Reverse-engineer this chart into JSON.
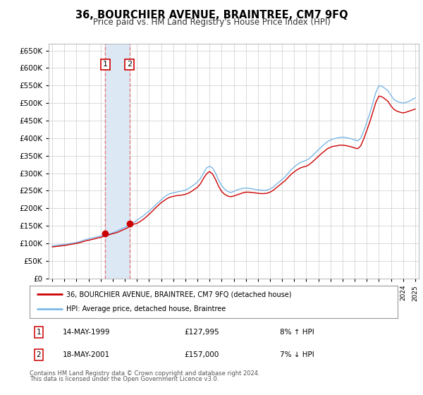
{
  "title": "36, BOURCHIER AVENUE, BRAINTREE, CM7 9FQ",
  "subtitle": "Price paid vs. HM Land Registry's House Price Index (HPI)",
  "legend_line1": "36, BOURCHIER AVENUE, BRAINTREE, CM7 9FQ (detached house)",
  "legend_line2": "HPI: Average price, detached house, Braintree",
  "transaction1_date": "14-MAY-1999",
  "transaction1_price": 127995,
  "transaction1_hpi": "8% ↑ HPI",
  "transaction2_date": "18-MAY-2001",
  "transaction2_price": 157000,
  "transaction2_hpi": "7% ↓ HPI",
  "footnote1": "Contains HM Land Registry data © Crown copyright and database right 2024.",
  "footnote2": "This data is licensed under the Open Government Licence v3.0.",
  "hpi_color": "#7ab8e8",
  "price_color": "#cc0000",
  "marker_color": "#cc0000",
  "background_color": "#ffffff",
  "grid_color": "#cccccc",
  "vspan_color": "#dde8f5",
  "vline_color": "#e08080",
  "ylim": [
    0,
    670000
  ],
  "yticks": [
    0,
    50000,
    100000,
    150000,
    200000,
    250000,
    300000,
    350000,
    400000,
    450000,
    500000,
    550000,
    600000,
    650000
  ],
  "years": [
    1995.0,
    1995.25,
    1995.5,
    1995.75,
    1996.0,
    1996.25,
    1996.5,
    1996.75,
    1997.0,
    1997.25,
    1997.5,
    1997.75,
    1998.0,
    1998.25,
    1998.5,
    1998.75,
    1999.0,
    1999.25,
    1999.5,
    1999.75,
    2000.0,
    2000.25,
    2000.5,
    2000.75,
    2001.0,
    2001.25,
    2001.5,
    2001.75,
    2002.0,
    2002.25,
    2002.5,
    2002.75,
    2003.0,
    2003.25,
    2003.5,
    2003.75,
    2004.0,
    2004.25,
    2004.5,
    2004.75,
    2005.0,
    2005.25,
    2005.5,
    2005.75,
    2006.0,
    2006.25,
    2006.5,
    2006.75,
    2007.0,
    2007.25,
    2007.5,
    2007.75,
    2008.0,
    2008.25,
    2008.5,
    2008.75,
    2009.0,
    2009.25,
    2009.5,
    2009.75,
    2010.0,
    2010.25,
    2010.5,
    2010.75,
    2011.0,
    2011.25,
    2011.5,
    2011.75,
    2012.0,
    2012.25,
    2012.5,
    2012.75,
    2013.0,
    2013.25,
    2013.5,
    2013.75,
    2014.0,
    2014.25,
    2014.5,
    2014.75,
    2015.0,
    2015.25,
    2015.5,
    2015.75,
    2016.0,
    2016.25,
    2016.5,
    2016.75,
    2017.0,
    2017.25,
    2017.5,
    2017.75,
    2018.0,
    2018.25,
    2018.5,
    2018.75,
    2019.0,
    2019.25,
    2019.5,
    2019.75,
    2020.0,
    2020.25,
    2020.5,
    2020.75,
    2021.0,
    2021.25,
    2021.5,
    2021.75,
    2022.0,
    2022.25,
    2022.5,
    2022.75,
    2023.0,
    2023.25,
    2023.5,
    2023.75,
    2024.0,
    2024.25,
    2024.5,
    2024.75,
    2025.0
  ],
  "hpi_values": [
    93000,
    94000,
    95000,
    96000,
    97000,
    98500,
    100000,
    101000,
    103000,
    105000,
    108000,
    111000,
    113000,
    115000,
    117000,
    119000,
    121000,
    123000,
    125000,
    127000,
    130000,
    134000,
    138000,
    142000,
    146000,
    150000,
    155000,
    160000,
    166000,
    172000,
    178000,
    185000,
    192000,
    200000,
    208000,
    216000,
    224000,
    232000,
    238000,
    242000,
    244000,
    246000,
    248000,
    250000,
    252000,
    256000,
    262000,
    268000,
    275000,
    285000,
    300000,
    315000,
    320000,
    315000,
    300000,
    280000,
    265000,
    255000,
    248000,
    245000,
    248000,
    252000,
    255000,
    257000,
    258000,
    257000,
    256000,
    254000,
    253000,
    252000,
    251000,
    252000,
    255000,
    260000,
    268000,
    275000,
    282000,
    290000,
    300000,
    310000,
    318000,
    325000,
    330000,
    334000,
    337000,
    342000,
    350000,
    358000,
    367000,
    375000,
    383000,
    390000,
    395000,
    398000,
    400000,
    402000,
    403000,
    402000,
    400000,
    398000,
    395000,
    392000,
    400000,
    420000,
    445000,
    470000,
    500000,
    530000,
    550000,
    548000,
    542000,
    535000,
    522000,
    510000,
    505000,
    502000,
    500000,
    502000,
    505000,
    510000,
    515000
  ],
  "red_values": [
    90000,
    91000,
    92000,
    93000,
    94000,
    95500,
    97000,
    98500,
    100000,
    102000,
    104500,
    107000,
    109000,
    111000,
    113000,
    115500,
    117000,
    120000,
    122500,
    125000,
    127995,
    130000,
    133000,
    137000,
    141000,
    145000,
    150000,
    155000,
    157000,
    162000,
    168000,
    175000,
    183000,
    191000,
    200000,
    208000,
    216000,
    222000,
    228000,
    232000,
    234000,
    236000,
    237000,
    238000,
    240000,
    243000,
    248000,
    254000,
    260000,
    270000,
    285000,
    298000,
    305000,
    298000,
    282000,
    263000,
    248000,
    240000,
    235000,
    233000,
    235000,
    238000,
    241000,
    244000,
    246000,
    246000,
    245000,
    244000,
    243000,
    242000,
    242000,
    243000,
    246000,
    251000,
    258000,
    265000,
    272000,
    279000,
    288000,
    297000,
    304000,
    310000,
    315000,
    318000,
    320000,
    325000,
    332000,
    340000,
    348000,
    356000,
    363000,
    370000,
    374000,
    377000,
    378000,
    380000,
    380000,
    379000,
    377000,
    375000,
    372000,
    370000,
    378000,
    398000,
    422000,
    446000,
    474000,
    502000,
    520000,
    518000,
    512000,
    505000,
    492000,
    482000,
    477000,
    474000,
    472000,
    474000,
    477000,
    480000,
    483000
  ],
  "transaction1_x": 1999.38,
  "transaction2_x": 2001.38,
  "vline1_x": 1999.38,
  "vline2_x": 2001.38,
  "xlim_left": 1994.7,
  "xlim_right": 2025.3
}
